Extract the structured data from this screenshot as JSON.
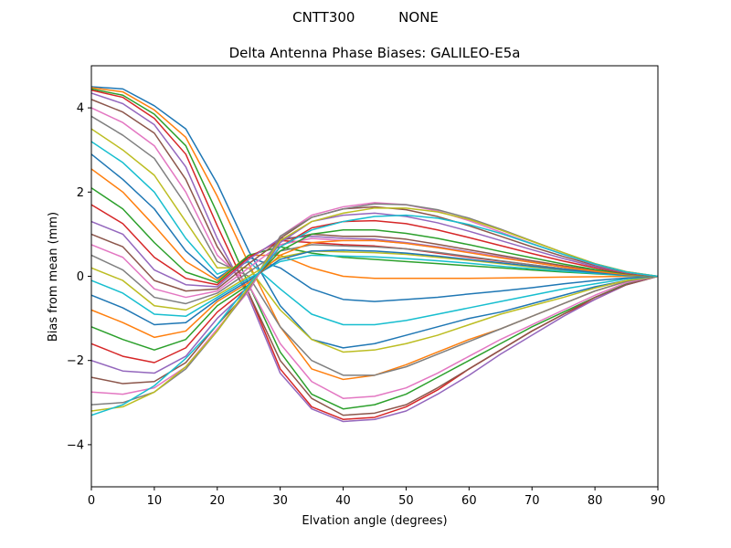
{
  "suptitle": "CNTT300          NONE",
  "chart_data": {
    "type": "line",
    "title": "Delta Antenna Phase Biases: GALILEO-E5a",
    "xlabel": "Elvation angle (degrees)",
    "ylabel": "Bias from mean (mm)",
    "xlim": [
      0,
      90
    ],
    "ylim": [
      -5,
      5
    ],
    "xticks": [
      0,
      10,
      20,
      30,
      40,
      50,
      60,
      70,
      80,
      90
    ],
    "yticks": [
      -4,
      -2,
      0,
      2,
      4
    ],
    "grid": false,
    "legend": "none",
    "x": [
      0,
      5,
      10,
      15,
      20,
      25,
      30,
      35,
      40,
      45,
      50,
      55,
      60,
      65,
      70,
      75,
      80,
      85,
      90
    ],
    "colors": [
      "#1f77b4",
      "#ff7f0e",
      "#2ca02c",
      "#d62728",
      "#9467bd",
      "#8c564b",
      "#e377c2",
      "#7f7f7f",
      "#bcbd22",
      "#17becf"
    ],
    "series": [
      {
        "values": [
          4.5,
          4.45,
          4.05,
          3.5,
          2.2,
          0.6,
          -0.7,
          -1.5,
          -1.7,
          -1.6,
          -1.4,
          -1.2,
          -1.0,
          -0.85,
          -0.65,
          -0.45,
          -0.25,
          -0.1,
          0
        ]
      },
      {
        "values": [
          4.48,
          4.38,
          3.95,
          3.3,
          1.9,
          0.3,
          -1.2,
          -2.2,
          -2.45,
          -2.35,
          -2.1,
          -1.8,
          -1.5,
          -1.25,
          -0.95,
          -0.65,
          -0.35,
          -0.12,
          0
        ]
      },
      {
        "values": [
          4.45,
          4.3,
          3.85,
          3.1,
          1.5,
          -0.2,
          -1.8,
          -2.8,
          -3.15,
          -3.05,
          -2.8,
          -2.4,
          -2.0,
          -1.6,
          -1.2,
          -0.85,
          -0.5,
          -0.18,
          0
        ]
      },
      {
        "values": [
          4.42,
          4.25,
          3.75,
          2.9,
          1.2,
          -0.4,
          -2.2,
          -3.1,
          -3.4,
          -3.35,
          -3.1,
          -2.7,
          -2.2,
          -1.75,
          -1.3,
          -0.9,
          -0.55,
          -0.2,
          0
        ]
      },
      {
        "values": [
          4.35,
          4.1,
          3.6,
          2.6,
          0.9,
          -0.5,
          -2.3,
          -3.15,
          -3.45,
          -3.4,
          -3.2,
          -2.8,
          -2.35,
          -1.85,
          -1.4,
          -0.95,
          -0.55,
          -0.2,
          0
        ]
      },
      {
        "values": [
          4.2,
          3.9,
          3.4,
          2.3,
          0.7,
          -0.4,
          -2.0,
          -2.9,
          -3.3,
          -3.25,
          -3.05,
          -2.65,
          -2.2,
          -1.75,
          -1.3,
          -0.9,
          -0.5,
          -0.2,
          0
        ]
      },
      {
        "values": [
          4.0,
          3.65,
          3.1,
          2.0,
          0.5,
          -0.2,
          -1.6,
          -2.5,
          -2.9,
          -2.85,
          -2.65,
          -2.3,
          -1.9,
          -1.5,
          -1.15,
          -0.8,
          -0.45,
          -0.15,
          0
        ]
      },
      {
        "values": [
          3.8,
          3.35,
          2.8,
          1.7,
          0.35,
          0.0,
          -1.2,
          -2.0,
          -2.35,
          -2.35,
          -2.15,
          -1.85,
          -1.55,
          -1.25,
          -0.95,
          -0.65,
          -0.35,
          -0.12,
          0
        ]
      },
      {
        "values": [
          3.5,
          3.0,
          2.4,
          1.3,
          0.2,
          0.2,
          -0.8,
          -1.5,
          -1.8,
          -1.75,
          -1.6,
          -1.4,
          -1.15,
          -0.9,
          -0.7,
          -0.5,
          -0.28,
          -0.1,
          0
        ]
      },
      {
        "values": [
          3.2,
          2.7,
          2.0,
          0.9,
          0.05,
          0.35,
          -0.3,
          -0.9,
          -1.15,
          -1.15,
          -1.05,
          -0.9,
          -0.75,
          -0.6,
          -0.45,
          -0.3,
          -0.18,
          -0.06,
          0
        ]
      },
      {
        "values": [
          2.9,
          2.3,
          1.6,
          0.6,
          -0.05,
          0.45,
          0.2,
          -0.3,
          -0.55,
          -0.6,
          -0.55,
          -0.5,
          -0.42,
          -0.35,
          -0.27,
          -0.18,
          -0.1,
          -0.04,
          0
        ]
      },
      {
        "values": [
          2.55,
          2.0,
          1.2,
          0.35,
          -0.1,
          0.5,
          0.5,
          0.2,
          0.0,
          -0.05,
          -0.05,
          -0.05,
          -0.05,
          -0.04,
          -0.03,
          -0.02,
          -0.01,
          0.0,
          0
        ]
      },
      {
        "values": [
          2.1,
          1.6,
          0.8,
          0.1,
          -0.15,
          0.5,
          0.7,
          0.55,
          0.45,
          0.4,
          0.35,
          0.3,
          0.25,
          0.2,
          0.15,
          0.1,
          0.06,
          0.02,
          0
        ]
      },
      {
        "values": [
          1.7,
          1.25,
          0.45,
          -0.05,
          -0.2,
          0.45,
          0.85,
          0.8,
          0.75,
          0.72,
          0.65,
          0.55,
          0.45,
          0.36,
          0.27,
          0.18,
          0.1,
          0.04,
          0
        ]
      },
      {
        "values": [
          1.3,
          1.0,
          0.15,
          -0.2,
          -0.25,
          0.4,
          0.9,
          0.95,
          0.9,
          0.88,
          0.8,
          0.7,
          0.58,
          0.46,
          0.34,
          0.23,
          0.13,
          0.05,
          0
        ]
      },
      {
        "values": [
          1.0,
          0.7,
          -0.1,
          -0.35,
          -0.3,
          0.3,
          0.85,
          1.0,
          0.95,
          0.95,
          0.88,
          0.76,
          0.63,
          0.5,
          0.37,
          0.25,
          0.14,
          0.05,
          0
        ]
      },
      {
        "values": [
          0.75,
          0.45,
          -0.3,
          -0.5,
          -0.35,
          0.2,
          0.75,
          0.9,
          0.85,
          0.85,
          0.78,
          0.68,
          0.57,
          0.45,
          0.33,
          0.22,
          0.12,
          0.04,
          0
        ]
      },
      {
        "values": [
          0.5,
          0.15,
          -0.5,
          -0.65,
          -0.4,
          0.1,
          0.6,
          0.75,
          0.72,
          0.7,
          0.65,
          0.57,
          0.47,
          0.37,
          0.27,
          0.18,
          0.1,
          0.04,
          0
        ]
      },
      {
        "values": [
          0.2,
          -0.1,
          -0.7,
          -0.8,
          -0.45,
          0.0,
          0.45,
          0.6,
          0.58,
          0.56,
          0.52,
          0.45,
          0.38,
          0.3,
          0.22,
          0.15,
          0.08,
          0.03,
          0
        ]
      },
      {
        "values": [
          -0.1,
          -0.4,
          -0.9,
          -0.95,
          -0.5,
          -0.05,
          0.35,
          0.5,
          0.48,
          0.46,
          0.42,
          0.37,
          0.31,
          0.24,
          0.18,
          0.12,
          0.07,
          0.02,
          0
        ]
      },
      {
        "values": [
          -0.45,
          -0.75,
          -1.15,
          -1.1,
          -0.55,
          -0.1,
          0.4,
          0.6,
          0.62,
          0.6,
          0.55,
          0.48,
          0.4,
          0.32,
          0.24,
          0.16,
          0.09,
          0.03,
          0
        ]
      },
      {
        "values": [
          -0.8,
          -1.1,
          -1.45,
          -1.3,
          -0.6,
          -0.15,
          0.5,
          0.8,
          0.85,
          0.85,
          0.78,
          0.68,
          0.56,
          0.44,
          0.33,
          0.22,
          0.12,
          0.04,
          0
        ]
      },
      {
        "values": [
          -1.2,
          -1.5,
          -1.75,
          -1.5,
          -0.7,
          -0.2,
          0.6,
          1.0,
          1.1,
          1.1,
          1.02,
          0.9,
          0.75,
          0.59,
          0.44,
          0.29,
          0.16,
          0.06,
          0
        ]
      },
      {
        "values": [
          -1.6,
          -1.9,
          -2.05,
          -1.7,
          -0.85,
          -0.25,
          0.7,
          1.15,
          1.3,
          1.32,
          1.25,
          1.1,
          0.92,
          0.73,
          0.54,
          0.36,
          0.2,
          0.07,
          0
        ]
      },
      {
        "values": [
          -2.0,
          -2.25,
          -2.3,
          -1.9,
          -1.0,
          -0.3,
          0.8,
          1.3,
          1.45,
          1.5,
          1.42,
          1.27,
          1.07,
          0.85,
          0.63,
          0.42,
          0.23,
          0.08,
          0
        ]
      },
      {
        "values": [
          -2.4,
          -2.55,
          -2.5,
          -2.05,
          -1.15,
          -0.35,
          0.9,
          1.4,
          1.6,
          1.65,
          1.58,
          1.42,
          1.2,
          0.95,
          0.7,
          0.47,
          0.26,
          0.09,
          0
        ]
      },
      {
        "values": [
          -2.75,
          -2.8,
          -2.65,
          -2.15,
          -1.25,
          -0.35,
          0.95,
          1.45,
          1.65,
          1.75,
          1.7,
          1.55,
          1.32,
          1.05,
          0.78,
          0.52,
          0.28,
          0.1,
          0
        ]
      },
      {
        "values": [
          -3.05,
          -3.0,
          -2.75,
          -2.2,
          -1.3,
          -0.3,
          0.95,
          1.4,
          1.6,
          1.72,
          1.7,
          1.58,
          1.38,
          1.12,
          0.84,
          0.56,
          0.3,
          0.11,
          0
        ]
      },
      {
        "values": [
          -3.2,
          -3.1,
          -2.75,
          -2.15,
          -1.3,
          -0.25,
          0.85,
          1.3,
          1.5,
          1.62,
          1.62,
          1.53,
          1.35,
          1.1,
          0.83,
          0.56,
          0.3,
          0.11,
          0
        ]
      },
      {
        "values": [
          -3.3,
          -3.05,
          -2.6,
          -1.95,
          -1.15,
          -0.2,
          0.7,
          1.1,
          1.3,
          1.42,
          1.45,
          1.38,
          1.23,
          1.02,
          0.77,
          0.52,
          0.29,
          0.1,
          0
        ]
      }
    ]
  }
}
